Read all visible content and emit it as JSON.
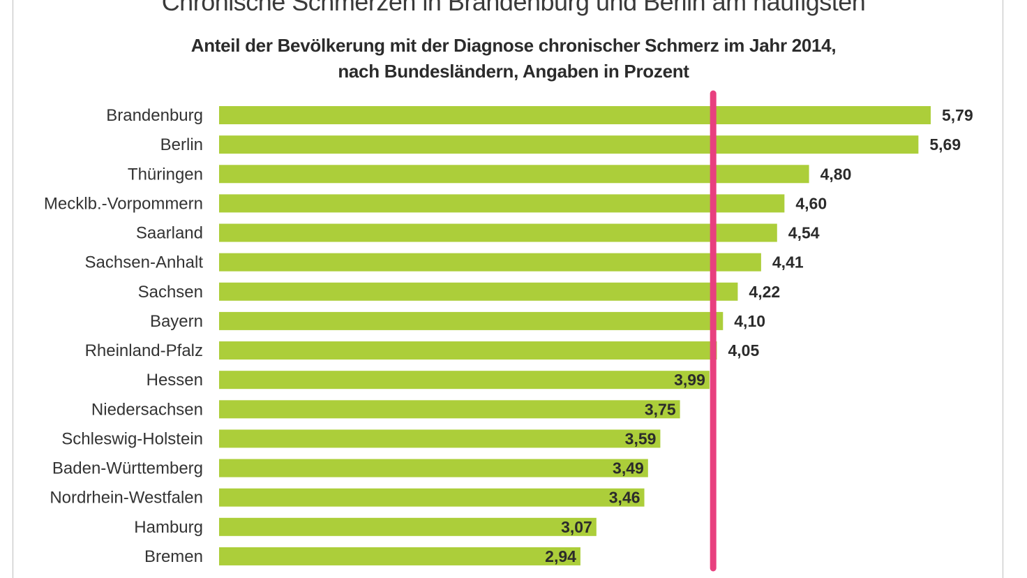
{
  "chart_data": {
    "type": "bar",
    "orientation": "horizontal",
    "title": "Chronische Schmerzen in Brandenburg und Berlin am häufigsten",
    "subtitle_lines": [
      "Anteil der Bevölkerung mit der Diagnose chronischer Schmerz im Jahr 2014,",
      "nach Bundesländern, Angaben in Prozent"
    ],
    "categories": [
      "Brandenburg",
      "Berlin",
      "Thüringen",
      "Mecklb.-Vorpommern",
      "Saarland",
      "Sachsen-Anhalt",
      "Sachsen",
      "Bayern",
      "Rheinland-Pfalz",
      "Hessen",
      "Niedersachsen",
      "Schleswig-Holstein",
      "Baden-Württemberg",
      "Nordrhein-Westfalen",
      "Hamburg",
      "Bremen"
    ],
    "values": [
      5.79,
      5.69,
      4.8,
      4.6,
      4.54,
      4.41,
      4.22,
      4.1,
      4.05,
      3.99,
      3.75,
      3.59,
      3.49,
      3.46,
      3.07,
      2.94
    ],
    "value_labels": [
      "5,79",
      "5,69",
      "4,80",
      "4,60",
      "4,54",
      "4,41",
      "4,22",
      "4,10",
      "4,05",
      "3,99",
      "3,75",
      "3,59",
      "3,49",
      "3,46",
      "3,07",
      "2,94"
    ],
    "reference_line": 4.02,
    "xlim": [
      0,
      5.79
    ],
    "grid": false,
    "legend": "none",
    "colors": {
      "bar": "#acce3a",
      "reference_line": "#e8407f"
    }
  }
}
